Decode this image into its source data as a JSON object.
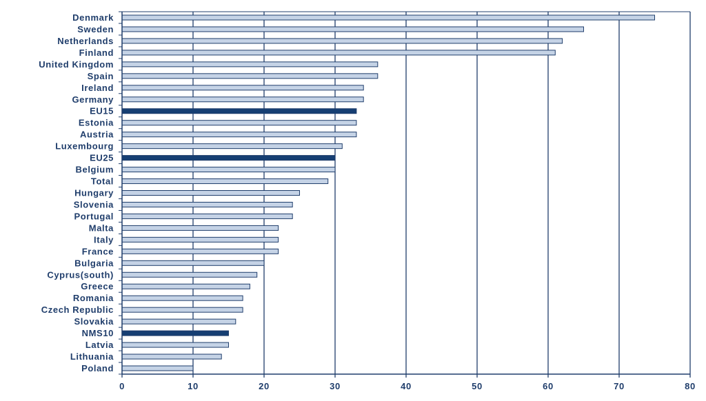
{
  "chart_data": {
    "type": "bar",
    "orientation": "horizontal",
    "categories": [
      "Denmark",
      "Sweden",
      "Netherlands",
      "Finland",
      "United Kingdom",
      "Spain",
      "Ireland",
      "Germany",
      "EU15",
      "Estonia",
      "Austria",
      "Luxembourg",
      "EU25",
      "Belgium",
      "Total",
      "Hungary",
      "Slovenia",
      "Portugal",
      "Malta",
      "Italy",
      "France",
      "Bulgaria",
      "Cyprus(south)",
      "Greece",
      "Romania",
      "Czech Republic",
      "Slovakia",
      "NMS10",
      "Latvia",
      "Lithuania",
      "Poland"
    ],
    "values": [
      75,
      65,
      62,
      61,
      36,
      36,
      34,
      34,
      33,
      33,
      33,
      31,
      30,
      30,
      29,
      25,
      24,
      24,
      22,
      22,
      22,
      20,
      19,
      18,
      17,
      17,
      16,
      15,
      15,
      14,
      10
    ],
    "highlighted": [
      "EU15",
      "EU25",
      "NMS10"
    ],
    "title": "",
    "xlabel": "",
    "ylabel": "",
    "xlim": [
      0,
      80
    ],
    "xticks": [
      0,
      10,
      20,
      30,
      40,
      50,
      60,
      70,
      80
    ],
    "grid": "vertical",
    "legend": "none",
    "colors": {
      "bar_fill": "#c5d3e6",
      "bar_stroke": "#1f3d6b",
      "highlight_fill": "#163f73",
      "axis": "#1f3d6b",
      "grid": "#1f3d6b",
      "label": "#1f3d6b"
    }
  }
}
